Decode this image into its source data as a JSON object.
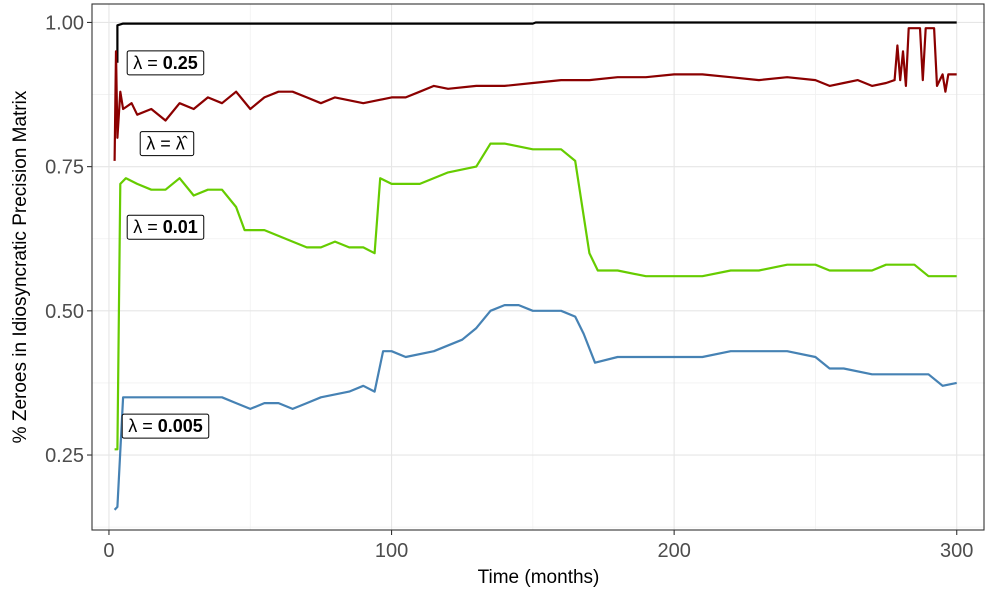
{
  "chart_data": {
    "type": "line",
    "xlabel": "Time (months)",
    "ylabel": "% Zeroes in Idiosyncratic Precision Matrix",
    "xlim": [
      -6,
      310
    ],
    "ylim": [
      0.12,
      1.032
    ],
    "x_ticks": [
      0,
      100,
      200,
      300
    ],
    "x_tick_labels": [
      "0",
      "100",
      "200",
      "300"
    ],
    "y_ticks": [
      0.25,
      0.5,
      0.75,
      1.0
    ],
    "y_tick_labels": [
      "0.25",
      "0.50",
      "0.75",
      "1.00"
    ],
    "grid": true,
    "legend": "none",
    "series": [
      {
        "color": "#000000",
        "points": [
          [
            3,
            0.93
          ],
          [
            3,
            0.995
          ],
          [
            5,
            0.998
          ],
          [
            150,
            0.998
          ],
          [
            151,
            1.0
          ],
          [
            300,
            1.0
          ]
        ]
      },
      {
        "color": "#8b0000",
        "points": [
          [
            2,
            0.76
          ],
          [
            2.5,
            0.95
          ],
          [
            3,
            0.8
          ],
          [
            4,
            0.88
          ],
          [
            5,
            0.85
          ],
          [
            8,
            0.86
          ],
          [
            10,
            0.84
          ],
          [
            15,
            0.85
          ],
          [
            20,
            0.83
          ],
          [
            25,
            0.86
          ],
          [
            30,
            0.85
          ],
          [
            35,
            0.87
          ],
          [
            40,
            0.86
          ],
          [
            45,
            0.88
          ],
          [
            50,
            0.85
          ],
          [
            55,
            0.87
          ],
          [
            60,
            0.88
          ],
          [
            65,
            0.88
          ],
          [
            70,
            0.87
          ],
          [
            75,
            0.86
          ],
          [
            80,
            0.87
          ],
          [
            90,
            0.86
          ],
          [
            100,
            0.87
          ],
          [
            105,
            0.87
          ],
          [
            110,
            0.88
          ],
          [
            115,
            0.89
          ],
          [
            120,
            0.885
          ],
          [
            130,
            0.89
          ],
          [
            140,
            0.89
          ],
          [
            150,
            0.895
          ],
          [
            160,
            0.9
          ],
          [
            170,
            0.9
          ],
          [
            180,
            0.905
          ],
          [
            190,
            0.905
          ],
          [
            200,
            0.91
          ],
          [
            210,
            0.91
          ],
          [
            220,
            0.905
          ],
          [
            230,
            0.9
          ],
          [
            240,
            0.905
          ],
          [
            250,
            0.9
          ],
          [
            255,
            0.89
          ],
          [
            260,
            0.895
          ],
          [
            265,
            0.9
          ],
          [
            270,
            0.89
          ],
          [
            275,
            0.895
          ],
          [
            278,
            0.9
          ],
          [
            279,
            0.96
          ],
          [
            280,
            0.9
          ],
          [
            281,
            0.95
          ],
          [
            282,
            0.89
          ],
          [
            283,
            0.99
          ],
          [
            287,
            0.99
          ],
          [
            288,
            0.9
          ],
          [
            289,
            0.99
          ],
          [
            292,
            0.99
          ],
          [
            293,
            0.89
          ],
          [
            295,
            0.91
          ],
          [
            296,
            0.88
          ],
          [
            297,
            0.91
          ],
          [
            300,
            0.91
          ]
        ]
      },
      {
        "color": "#66cc00",
        "points": [
          [
            2,
            0.26
          ],
          [
            3,
            0.26
          ],
          [
            4,
            0.72
          ],
          [
            6,
            0.73
          ],
          [
            10,
            0.72
          ],
          [
            15,
            0.71
          ],
          [
            20,
            0.71
          ],
          [
            25,
            0.73
          ],
          [
            30,
            0.7
          ],
          [
            35,
            0.71
          ],
          [
            40,
            0.71
          ],
          [
            45,
            0.68
          ],
          [
            48,
            0.64
          ],
          [
            55,
            0.64
          ],
          [
            60,
            0.63
          ],
          [
            65,
            0.62
          ],
          [
            70,
            0.61
          ],
          [
            75,
            0.61
          ],
          [
            80,
            0.62
          ],
          [
            85,
            0.61
          ],
          [
            90,
            0.61
          ],
          [
            94,
            0.6
          ],
          [
            96,
            0.73
          ],
          [
            100,
            0.72
          ],
          [
            110,
            0.72
          ],
          [
            120,
            0.74
          ],
          [
            130,
            0.75
          ],
          [
            135,
            0.79
          ],
          [
            140,
            0.79
          ],
          [
            150,
            0.78
          ],
          [
            160,
            0.78
          ],
          [
            165,
            0.76
          ],
          [
            170,
            0.6
          ],
          [
            173,
            0.57
          ],
          [
            180,
            0.57
          ],
          [
            190,
            0.56
          ],
          [
            200,
            0.56
          ],
          [
            210,
            0.56
          ],
          [
            220,
            0.57
          ],
          [
            230,
            0.57
          ],
          [
            240,
            0.58
          ],
          [
            250,
            0.58
          ],
          [
            255,
            0.57
          ],
          [
            260,
            0.57
          ],
          [
            270,
            0.57
          ],
          [
            275,
            0.58
          ],
          [
            285,
            0.58
          ],
          [
            290,
            0.56
          ],
          [
            300,
            0.56
          ]
        ]
      },
      {
        "color": "#4682b4",
        "points": [
          [
            2,
            0.155
          ],
          [
            3,
            0.16
          ],
          [
            5,
            0.35
          ],
          [
            10,
            0.35
          ],
          [
            20,
            0.35
          ],
          [
            30,
            0.35
          ],
          [
            40,
            0.35
          ],
          [
            45,
            0.34
          ],
          [
            50,
            0.33
          ],
          [
            55,
            0.34
          ],
          [
            60,
            0.34
          ],
          [
            65,
            0.33
          ],
          [
            70,
            0.34
          ],
          [
            75,
            0.35
          ],
          [
            85,
            0.36
          ],
          [
            90,
            0.37
          ],
          [
            94,
            0.36
          ],
          [
            97,
            0.43
          ],
          [
            100,
            0.43
          ],
          [
            105,
            0.42
          ],
          [
            115,
            0.43
          ],
          [
            125,
            0.45
          ],
          [
            130,
            0.47
          ],
          [
            135,
            0.5
          ],
          [
            140,
            0.51
          ],
          [
            145,
            0.51
          ],
          [
            150,
            0.5
          ],
          [
            160,
            0.5
          ],
          [
            165,
            0.49
          ],
          [
            168,
            0.46
          ],
          [
            172,
            0.41
          ],
          [
            180,
            0.42
          ],
          [
            190,
            0.42
          ],
          [
            200,
            0.42
          ],
          [
            210,
            0.42
          ],
          [
            220,
            0.43
          ],
          [
            230,
            0.43
          ],
          [
            240,
            0.43
          ],
          [
            250,
            0.42
          ],
          [
            255,
            0.4
          ],
          [
            260,
            0.4
          ],
          [
            270,
            0.39
          ],
          [
            280,
            0.39
          ],
          [
            290,
            0.39
          ],
          [
            295,
            0.37
          ],
          [
            300,
            0.375
          ]
        ]
      }
    ],
    "annotations": [
      {
        "x": 20,
        "y": 0.93,
        "prefix": "λ = ",
        "value": "0.25",
        "bold": true
      },
      {
        "x": 20,
        "y": 0.79,
        "prefix": "λ = ",
        "value": "λ̂",
        "bold": false
      },
      {
        "x": 20,
        "y": 0.645,
        "prefix": "λ = ",
        "value": "0.01",
        "bold": true
      },
      {
        "x": 20,
        "y": 0.3,
        "prefix": "λ = ",
        "value": "0.005",
        "bold": true
      }
    ]
  }
}
